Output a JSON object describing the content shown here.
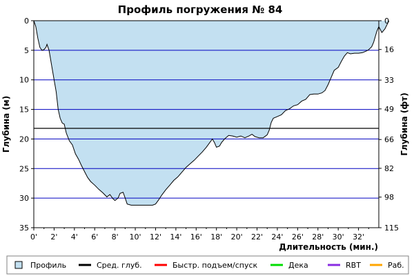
{
  "chart_data": {
    "type": "area",
    "title": "Профиль погружения № 84",
    "xlabel": "Длительность (мин.)",
    "ylabel_left": "Глубина (м)",
    "ylabel_right": "Глубина (фт)",
    "x_range": [
      0,
      34
    ],
    "y_range_m": [
      0,
      35
    ],
    "y_range_ft": [
      0,
      115
    ],
    "y_inverted": true,
    "x_ticks": [
      "0'",
      "2'",
      "4'",
      "6'",
      "8'",
      "10'",
      "12'",
      "14'",
      "16'",
      "18'",
      "20'",
      "22'",
      "24'",
      "26'",
      "28'",
      "30'",
      "32'"
    ],
    "y_ticks_m": [
      "0",
      "5",
      "10",
      "15",
      "20",
      "25",
      "30",
      "35"
    ],
    "y_ticks_ft": [
      "0",
      "16",
      "33",
      "49",
      "66",
      "82",
      "98",
      "115"
    ],
    "grid": "horizontal",
    "average_depth_m": 18.2,
    "series": [
      {
        "name": "Профиль",
        "color": "#c3e0f1",
        "points": [
          [
            0,
            0
          ],
          [
            0.2,
            1
          ],
          [
            0.4,
            3
          ],
          [
            0.6,
            4.5
          ],
          [
            0.8,
            5
          ],
          [
            1.0,
            4.9
          ],
          [
            1.2,
            4.5
          ],
          [
            1.3,
            4.0
          ],
          [
            1.5,
            5
          ],
          [
            1.7,
            7
          ],
          [
            2.0,
            10
          ],
          [
            2.2,
            12
          ],
          [
            2.4,
            15
          ],
          [
            2.6,
            16.5
          ],
          [
            2.8,
            17.3
          ],
          [
            3.0,
            17.5
          ],
          [
            3.2,
            19
          ],
          [
            3.5,
            20.3
          ],
          [
            3.8,
            21
          ],
          [
            4.1,
            22.5
          ],
          [
            4.4,
            23.4
          ],
          [
            4.7,
            24.5
          ],
          [
            5.0,
            25.5
          ],
          [
            5.3,
            26.5
          ],
          [
            5.6,
            27.2
          ],
          [
            6.0,
            27.8
          ],
          [
            6.4,
            28.5
          ],
          [
            6.8,
            29.1
          ],
          [
            7.2,
            29.8
          ],
          [
            7.5,
            29.4
          ],
          [
            7.8,
            30.1
          ],
          [
            8.0,
            30.4
          ],
          [
            8.3,
            30
          ],
          [
            8.5,
            29.2
          ],
          [
            8.8,
            29.0
          ],
          [
            9.0,
            30
          ],
          [
            9.2,
            31
          ],
          [
            9.6,
            31.2
          ],
          [
            10.2,
            31.2
          ],
          [
            11.0,
            31.2
          ],
          [
            11.7,
            31.2
          ],
          [
            12.0,
            31
          ],
          [
            12.3,
            30.3
          ],
          [
            12.6,
            29.5
          ],
          [
            13.0,
            28.6
          ],
          [
            13.4,
            27.8
          ],
          [
            13.8,
            27
          ],
          [
            14.2,
            26.4
          ],
          [
            14.6,
            25.6
          ],
          [
            15.0,
            24.8
          ],
          [
            15.4,
            24.2
          ],
          [
            15.8,
            23.6
          ],
          [
            16.2,
            22.9
          ],
          [
            16.6,
            22.2
          ],
          [
            17.0,
            21.4
          ],
          [
            17.3,
            20.7
          ],
          [
            17.6,
            20.0
          ],
          [
            17.8,
            20.6
          ],
          [
            18.0,
            21.4
          ],
          [
            18.3,
            21.2
          ],
          [
            18.5,
            20.6
          ],
          [
            18.8,
            20.0
          ],
          [
            19.2,
            19.4
          ],
          [
            19.6,
            19.5
          ],
          [
            20.0,
            19.7
          ],
          [
            20.4,
            19.5
          ],
          [
            20.8,
            19.8
          ],
          [
            21.2,
            19.5
          ],
          [
            21.5,
            19.2
          ],
          [
            21.8,
            19.6
          ],
          [
            22.2,
            19.8
          ],
          [
            22.6,
            19.8
          ],
          [
            23.0,
            19.3
          ],
          [
            23.2,
            18.5
          ],
          [
            23.4,
            17.2
          ],
          [
            23.6,
            16.5
          ],
          [
            24.0,
            16.2
          ],
          [
            24.4,
            15.9
          ],
          [
            24.8,
            15.2
          ],
          [
            25.2,
            14.9
          ],
          [
            25.6,
            14.4
          ],
          [
            26.0,
            14.2
          ],
          [
            26.4,
            13.6
          ],
          [
            26.8,
            13.3
          ],
          [
            27.2,
            12.5
          ],
          [
            27.6,
            12.4
          ],
          [
            28.0,
            12.4
          ],
          [
            28.4,
            12.2
          ],
          [
            28.7,
            11.8
          ],
          [
            29.0,
            10.8
          ],
          [
            29.3,
            9.6
          ],
          [
            29.6,
            8.4
          ],
          [
            30.0,
            7.9
          ],
          [
            30.3,
            6.9
          ],
          [
            30.6,
            6.0
          ],
          [
            30.9,
            5.4
          ],
          [
            31.2,
            5.6
          ],
          [
            31.6,
            5.5
          ],
          [
            32.0,
            5.5
          ],
          [
            32.4,
            5.4
          ],
          [
            32.8,
            5.1
          ],
          [
            33.0,
            4.9
          ],
          [
            33.3,
            4.4
          ],
          [
            33.5,
            3.6
          ],
          [
            33.8,
            1.8
          ],
          [
            34.0,
            1.0
          ],
          [
            34.3,
            2.0
          ],
          [
            34.6,
            1.4
          ],
          [
            35.0,
            0
          ]
        ]
      }
    ]
  },
  "legend": [
    {
      "label": "Профиль",
      "color": "#c3e0f1",
      "kind": "box"
    },
    {
      "label": "Сред. глуб.",
      "color": "#000000",
      "kind": "line"
    },
    {
      "label": "Быстр. подъем/спуск",
      "color": "#ff0000",
      "kind": "line"
    },
    {
      "label": "Дека",
      "color": "#00dd00",
      "kind": "line"
    },
    {
      "label": "RBT",
      "color": "#8a2be2",
      "kind": "line"
    },
    {
      "label": "Раб.",
      "color": "#ffa500",
      "kind": "line"
    }
  ],
  "colors": {
    "grid": "#0000c0",
    "fill": "#c3e0f1",
    "profile_line": "#000000"
  }
}
